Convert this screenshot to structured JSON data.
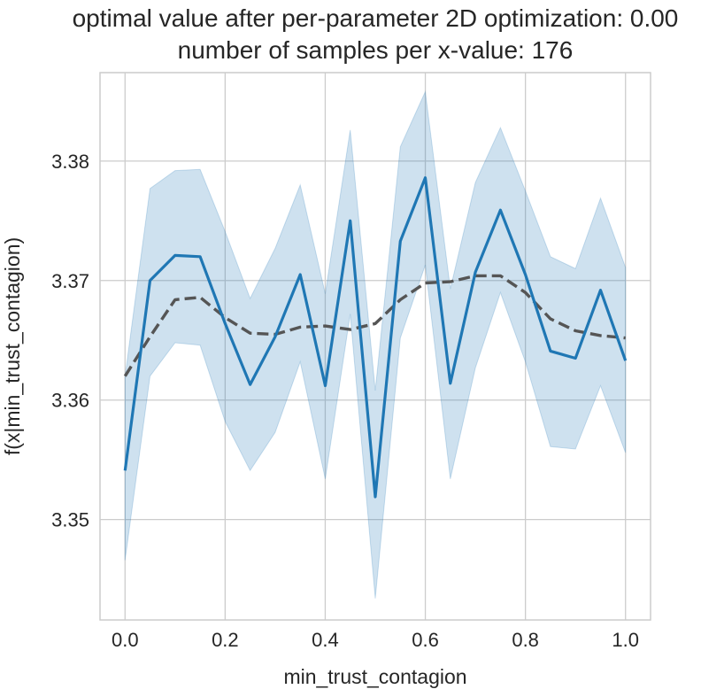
{
  "chart_data": {
    "type": "line",
    "title_lines": [
      "optimal value after per-parameter 2D optimization: 0.00",
      "number of samples per x-value: 176"
    ],
    "xlabel": "min_trust_contagion",
    "ylabel": "f(x|min_trust_contagion)",
    "xlim": [
      -0.05,
      1.05
    ],
    "ylim": [
      3.3416,
      3.3874
    ],
    "xticks": [
      0.0,
      0.2,
      0.4,
      0.6,
      0.8,
      1.0
    ],
    "xtick_labels": [
      "0.0",
      "0.2",
      "0.4",
      "0.6",
      "0.8",
      "1.0"
    ],
    "yticks": [
      3.35,
      3.36,
      3.37,
      3.38
    ],
    "ytick_labels": [
      "3.35",
      "3.36",
      "3.37",
      "3.38"
    ],
    "grid": true,
    "x": [
      0.0,
      0.05,
      0.1,
      0.15,
      0.2,
      0.25,
      0.3,
      0.35,
      0.4,
      0.45,
      0.5,
      0.55,
      0.6,
      0.65,
      0.7,
      0.75,
      0.8,
      0.85,
      0.9,
      0.95,
      1.0
    ],
    "series": [
      {
        "style": "solid",
        "color": "#1f77b4",
        "values": [
          3.3541,
          3.37,
          3.3721,
          3.372,
          3.3664,
          3.3613,
          3.3653,
          3.3705,
          3.3612,
          3.375,
          3.3519,
          3.3733,
          3.3786,
          3.3614,
          3.3707,
          3.3759,
          3.3705,
          3.3641,
          3.3635,
          3.3692,
          3.3633
        ],
        "ci_lower": [
          3.3466,
          3.362,
          3.3648,
          3.3646,
          3.3582,
          3.3541,
          3.3573,
          3.3632,
          3.3534,
          3.3672,
          3.3434,
          3.3652,
          3.3713,
          3.3534,
          3.3627,
          3.369,
          3.3632,
          3.3561,
          3.3559,
          3.3612,
          3.3556
        ],
        "ci_upper": [
          3.362,
          3.3777,
          3.3792,
          3.3793,
          3.3741,
          3.3685,
          3.3727,
          3.378,
          3.3689,
          3.3826,
          3.3608,
          3.3812,
          3.3858,
          3.3693,
          3.3782,
          3.3828,
          3.3775,
          3.372,
          3.371,
          3.3769,
          3.3711
        ]
      },
      {
        "style": "dashed",
        "color": "#555555",
        "x": [
          0.0,
          0.05,
          0.1,
          0.15,
          0.2,
          0.25,
          0.3,
          0.35,
          0.4,
          0.45,
          0.5,
          0.55,
          0.6,
          0.65,
          0.7,
          0.75,
          0.8,
          0.85,
          0.9,
          0.95,
          1.0
        ],
        "values": [
          3.362,
          3.3653,
          3.3684,
          3.3686,
          3.3669,
          3.3656,
          3.3655,
          3.3661,
          3.3662,
          3.3659,
          3.3664,
          3.3684,
          3.3698,
          3.3699,
          3.3704,
          3.3704,
          3.369,
          3.3668,
          3.3658,
          3.3654,
          3.3652
        ]
      }
    ]
  }
}
